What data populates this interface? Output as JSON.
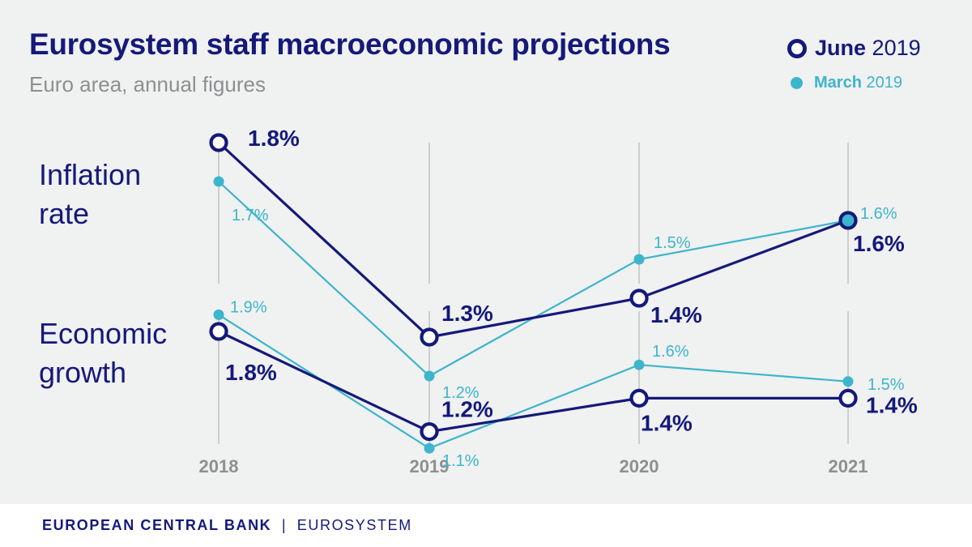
{
  "header": {
    "title": "Eurosystem staff macroeconomic projections",
    "subtitle": "Euro area, annual figures"
  },
  "legend": {
    "june_month": "June",
    "june_year": "2019",
    "march_month": "March",
    "march_year": "2019"
  },
  "panels": {
    "inflation_line1": "Inflation",
    "inflation_line2": "rate",
    "growth_line1": "Economic",
    "growth_line2": "growth"
  },
  "footer": {
    "org": "EUROPEAN CENTRAL BANK",
    "sep": "|",
    "system": "EUROSYSTEM"
  },
  "colors": {
    "navy": "#14197a",
    "teal": "#3db5cc",
    "grey": "#8d8f91"
  },
  "chart_data": [
    {
      "type": "line",
      "title": "Inflation rate",
      "categories": [
        "2018",
        "2019",
        "2020",
        "2021"
      ],
      "series": [
        {
          "name": "June 2019",
          "values": [
            1.8,
            1.3,
            1.4,
            1.6
          ],
          "labels": [
            "1.8%",
            "1.3%",
            "1.4%",
            "1.6%"
          ]
        },
        {
          "name": "March 2019",
          "values": [
            1.7,
            1.2,
            1.5,
            1.6
          ],
          "labels": [
            "1.7%",
            "1.2%",
            "1.5%",
            "1.6%"
          ]
        }
      ],
      "unit": "%"
    },
    {
      "type": "line",
      "title": "Economic growth",
      "categories": [
        "2018",
        "2019",
        "2020",
        "2021"
      ],
      "series": [
        {
          "name": "June 2019",
          "values": [
            1.8,
            1.2,
            1.4,
            1.4
          ],
          "labels": [
            "1.8%",
            "1.2%",
            "1.4%",
            "1.4%"
          ]
        },
        {
          "name": "March 2019",
          "values": [
            1.9,
            1.1,
            1.6,
            1.5
          ],
          "labels": [
            "1.9%",
            "1.1%",
            "1.6%",
            "1.5%"
          ]
        }
      ],
      "unit": "%"
    }
  ]
}
